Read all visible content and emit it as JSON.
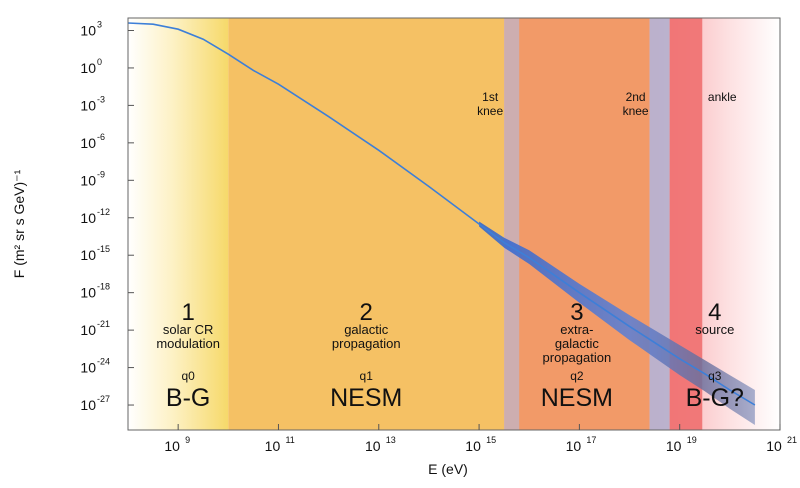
{
  "chart_data": {
    "type": "line",
    "xlabel": "E (eV)",
    "ylabel": "F (m² sr s GeV)⁻¹",
    "x_scale": "log",
    "y_scale": "log",
    "xlim": [
      100000000.0,
      1e+21
    ],
    "ylim": [
      1e-29,
      10000.0
    ],
    "grid": false,
    "x_ticks": [
      {
        "base": "10",
        "exp": "9",
        "value": 1000000000.0
      },
      {
        "base": "10",
        "exp": "11",
        "value": 100000000000.0
      },
      {
        "base": "10",
        "exp": "13",
        "value": 10000000000000.0
      },
      {
        "base": "10",
        "exp": "15",
        "value": 1000000000000000.0
      },
      {
        "base": "10",
        "exp": "17",
        "value": 1e+17
      },
      {
        "base": "10",
        "exp": "19",
        "value": 1e+19
      },
      {
        "base": "10",
        "exp": "21",
        "value": 1e+21
      }
    ],
    "y_ticks": [
      {
        "base": "10",
        "exp": "3",
        "value": 1000.0
      },
      {
        "base": "10",
        "exp": "0",
        "value": 1.0
      },
      {
        "base": "10",
        "exp": "-3",
        "value": 0.001
      },
      {
        "base": "10",
        "exp": "-6",
        "value": 1e-06
      },
      {
        "base": "10",
        "exp": "-9",
        "value": 1e-09
      },
      {
        "base": "10",
        "exp": "-12",
        "value": 1e-12
      },
      {
        "base": "10",
        "exp": "-15",
        "value": 1e-15
      },
      {
        "base": "10",
        "exp": "-18",
        "value": 1e-18
      },
      {
        "base": "10",
        "exp": "-21",
        "value": 1e-21
      },
      {
        "base": "10",
        "exp": "-24",
        "value": 1e-24
      },
      {
        "base": "10",
        "exp": "-27",
        "value": 1e-27
      }
    ],
    "series": [
      {
        "x_log10": [
          8.0,
          8.5,
          9.0,
          9.5,
          10.0,
          10.5,
          11.0,
          12.0,
          13.0,
          14.0,
          15.0,
          15.5,
          16.0,
          17.0,
          18.0,
          18.5,
          19.0,
          19.5,
          20.0,
          20.5
        ],
        "y_log10": [
          3.6,
          3.5,
          3.1,
          2.3,
          1.1,
          -0.2,
          -1.3,
          -3.9,
          -6.6,
          -9.5,
          -12.5,
          -14.0,
          -15.2,
          -18.0,
          -20.7,
          -22.0,
          -23.3,
          -24.5,
          -25.8,
          -27.0
        ],
        "band_lo_log10": [
          null,
          null,
          null,
          null,
          null,
          null,
          null,
          null,
          null,
          null,
          -12.7,
          -14.4,
          -15.7,
          -18.8,
          -21.8,
          -23.2,
          -24.6,
          -25.9,
          -27.3,
          -28.6
        ],
        "band_hi_log10": [
          null,
          null,
          null,
          null,
          null,
          null,
          null,
          null,
          null,
          null,
          -12.3,
          -13.6,
          -14.6,
          -17.3,
          -19.8,
          -21.0,
          -22.2,
          -23.4,
          -24.6,
          -25.8
        ]
      }
    ],
    "regions": [
      {
        "id": "r1",
        "from_log10": 8.0,
        "to_log10": 10.0,
        "number": "1",
        "lines": [
          "solar CR",
          "modulation"
        ],
        "q": "q0",
        "model": "B-G",
        "color": "#f6dc74"
      },
      {
        "id": "r2",
        "from_log10": 10.0,
        "to_log10": 15.5,
        "number": "2",
        "lines": [
          "galactic",
          "propagation"
        ],
        "q": "q1",
        "model": "NESM",
        "color": "#f5c164"
      },
      {
        "id": "r3",
        "from_log10": 15.5,
        "to_log10": 18.4,
        "number": "3",
        "lines": [
          "extra-",
          "galactic",
          "propagation"
        ],
        "q": "q2",
        "model": "NESM",
        "color": "#f29a68"
      },
      {
        "id": "r4",
        "from_log10": 18.4,
        "to_log10": 21.0,
        "number": "4",
        "lines": [
          "source"
        ],
        "q": "q3",
        "model": "B-G?",
        "color": "#fbc7c9"
      }
    ],
    "bands": [
      {
        "label_lines": [
          "1st",
          "knee"
        ],
        "from_log10": 15.5,
        "to_log10": 15.8,
        "color": "#c9b0b8"
      },
      {
        "label_lines": [
          "2nd",
          "knee"
        ],
        "from_log10": 18.4,
        "to_log10": 18.8,
        "color": "#b4b1cf"
      },
      {
        "label_lines": [
          "ankle"
        ],
        "from_log10": 18.8,
        "to_log10": 19.45,
        "color": "#ef6f6f"
      }
    ],
    "line_color": "#3d7fd8"
  }
}
